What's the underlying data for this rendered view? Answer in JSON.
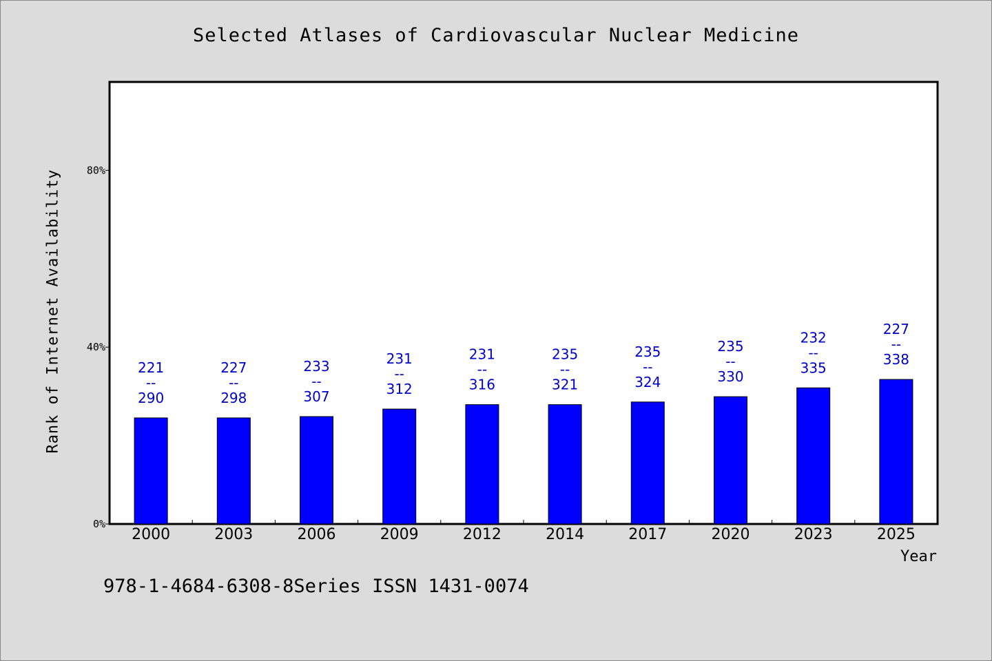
{
  "title": "Selected Atlases of Cardiovascular Nuclear Medicine",
  "footer": "978-1-4684-6308-8Series ISSN 1431-0074",
  "colors": {
    "background": "#dcdcdc",
    "plot_bg": "#ffffff",
    "bar": "#0000ff",
    "data_label": "#0000cc"
  },
  "chart_data": {
    "type": "bar",
    "title": "Selected Atlases of Cardiovascular Nuclear Medicine",
    "xlabel": "Year",
    "ylabel": "Rank of Internet Availability",
    "categories": [
      "2000",
      "2003",
      "2006",
      "2009",
      "2012",
      "2014",
      "2017",
      "2020",
      "2023",
      "2025"
    ],
    "values": [
      24,
      24,
      24.3,
      26,
      27,
      27,
      27.6,
      28.8,
      30.8,
      32.7
    ],
    "value_labels": [
      {
        "top": "221",
        "mid": "--",
        "bottom": "290"
      },
      {
        "top": "227",
        "mid": "--",
        "bottom": "298"
      },
      {
        "top": "233",
        "mid": "--",
        "bottom": "307"
      },
      {
        "top": "231",
        "mid": "--",
        "bottom": "312"
      },
      {
        "top": "231",
        "mid": "--",
        "bottom": "316"
      },
      {
        "top": "235",
        "mid": "--",
        "bottom": "321"
      },
      {
        "top": "235",
        "mid": "--",
        "bottom": "324"
      },
      {
        "top": "235",
        "mid": "--",
        "bottom": "330"
      },
      {
        "top": "232",
        "mid": "--",
        "bottom": "335"
      },
      {
        "top": "227",
        "mid": "--",
        "bottom": "338"
      }
    ],
    "ylim": [
      0,
      100
    ],
    "yticks": [
      0,
      40,
      80
    ],
    "ytick_labels": [
      "0%",
      "40%",
      "80%"
    ],
    "grid": false,
    "legend": "none"
  }
}
